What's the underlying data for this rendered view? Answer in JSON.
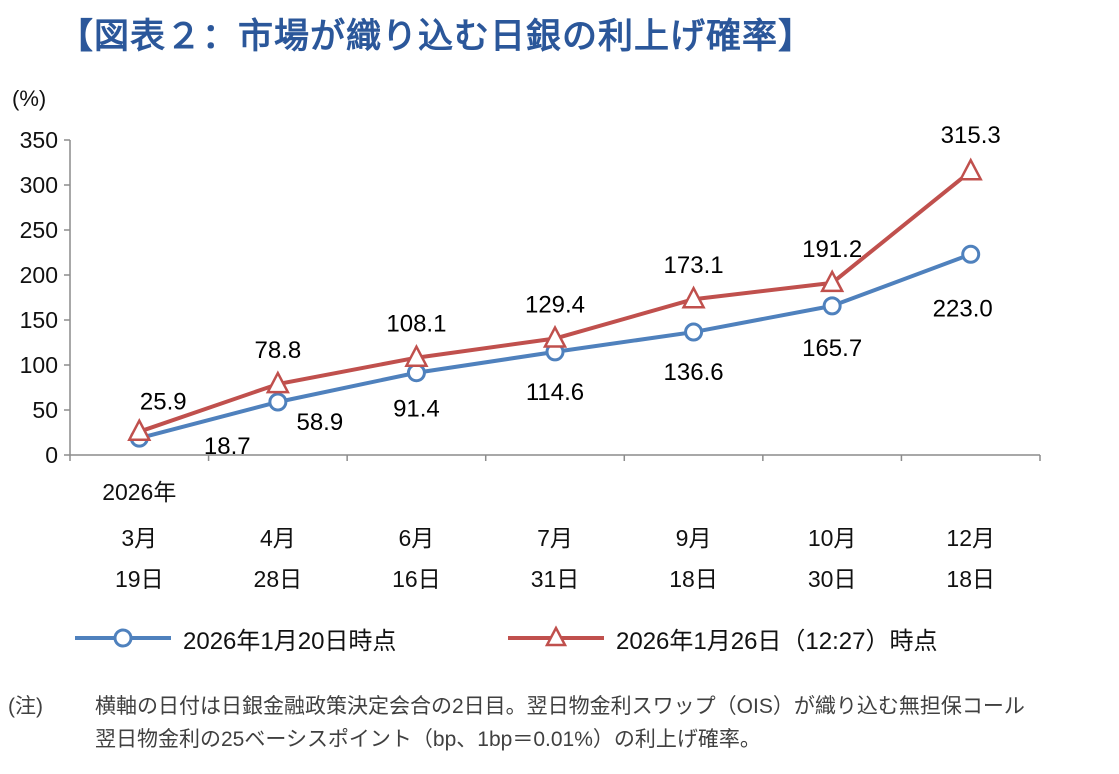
{
  "title": "【図表２：市場が織り込む日銀の利上げ確率】",
  "y_axis_unit": "(%)",
  "legend": {
    "series1": "2026年1月20日時点",
    "series2": "2026年1月26日（12:27）時点"
  },
  "note": {
    "label": "(注)",
    "text": "横軸の日付は日銀金融政策決定会合の2日目。翌日物金利スワップ（OIS）が織り込む無担保コール翌日物金利の25ベーシスポイント（bp、1bp＝0.01%）の利上げ確率。"
  },
  "chart_data": {
    "type": "line",
    "title": "【図表２：市場が織り込む日銀の利上げ確率】",
    "ylabel": "(%)",
    "ylim": [
      0,
      350
    ],
    "y_ticks": [
      0,
      50,
      100,
      150,
      200,
      250,
      300,
      350
    ],
    "grid": false,
    "legend_position": "bottom",
    "categories": [
      [
        "2026年",
        "3月",
        "19日"
      ],
      [
        "4月",
        "28日"
      ],
      [
        "6月",
        "16日"
      ],
      [
        "7月",
        "31日"
      ],
      [
        "9月",
        "18日"
      ],
      [
        "10月",
        "30日"
      ],
      [
        "12月",
        "18日"
      ]
    ],
    "series": [
      {
        "name": "2026年1月20日時点",
        "color": "#4F81BD",
        "marker": "circle",
        "values": [
          18.7,
          58.9,
          91.4,
          114.6,
          136.6,
          165.7,
          223.0
        ]
      },
      {
        "name": "2026年1月26日（12:27）時点",
        "color": "#C0504D",
        "marker": "triangle",
        "values": [
          25.9,
          78.8,
          108.1,
          129.4,
          173.1,
          191.2,
          315.3
        ]
      }
    ]
  }
}
